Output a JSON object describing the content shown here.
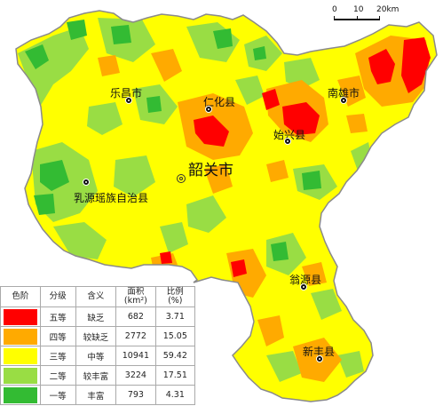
{
  "scale": {
    "labels": [
      "0",
      "10",
      "20km"
    ]
  },
  "places": {
    "shaoguan": "韶关市",
    "lechang": "乐昌市",
    "renhua": "仁化县",
    "nanxiong": "南雄市",
    "shixing": "始兴县",
    "ruyuan": "乳源瑶族自治县",
    "wengyuan": "翁源县",
    "xinfeng": "新丰县"
  },
  "legend": {
    "headers": {
      "color": "色阶",
      "grade": "分级",
      "meaning": "含义",
      "area": "面积",
      "area_unit": "(km²)",
      "ratio": "比例",
      "ratio_unit": "(%)"
    },
    "rows": [
      {
        "grade": "五等",
        "meaning": "缺乏",
        "area": "682",
        "ratio": "3.71",
        "color": "#ff0000"
      },
      {
        "grade": "四等",
        "meaning": "较缺乏",
        "area": "2772",
        "ratio": "15.05",
        "color": "#ffaa00"
      },
      {
        "grade": "三等",
        "meaning": "中等",
        "area": "10941",
        "ratio": "59.42",
        "color": "#ffff00"
      },
      {
        "grade": "二等",
        "meaning": "较丰富",
        "area": "3224",
        "ratio": "17.51",
        "color": "#99dd44"
      },
      {
        "grade": "一等",
        "meaning": "丰富",
        "area": "793",
        "ratio": "4.31",
        "color": "#33bb33"
      }
    ]
  },
  "colors": {
    "grade5": "#ff0000",
    "grade4": "#ffaa00",
    "grade3": "#ffff00",
    "grade2": "#99dd44",
    "grade1": "#33bb33",
    "border": "#8a8a8a"
  }
}
